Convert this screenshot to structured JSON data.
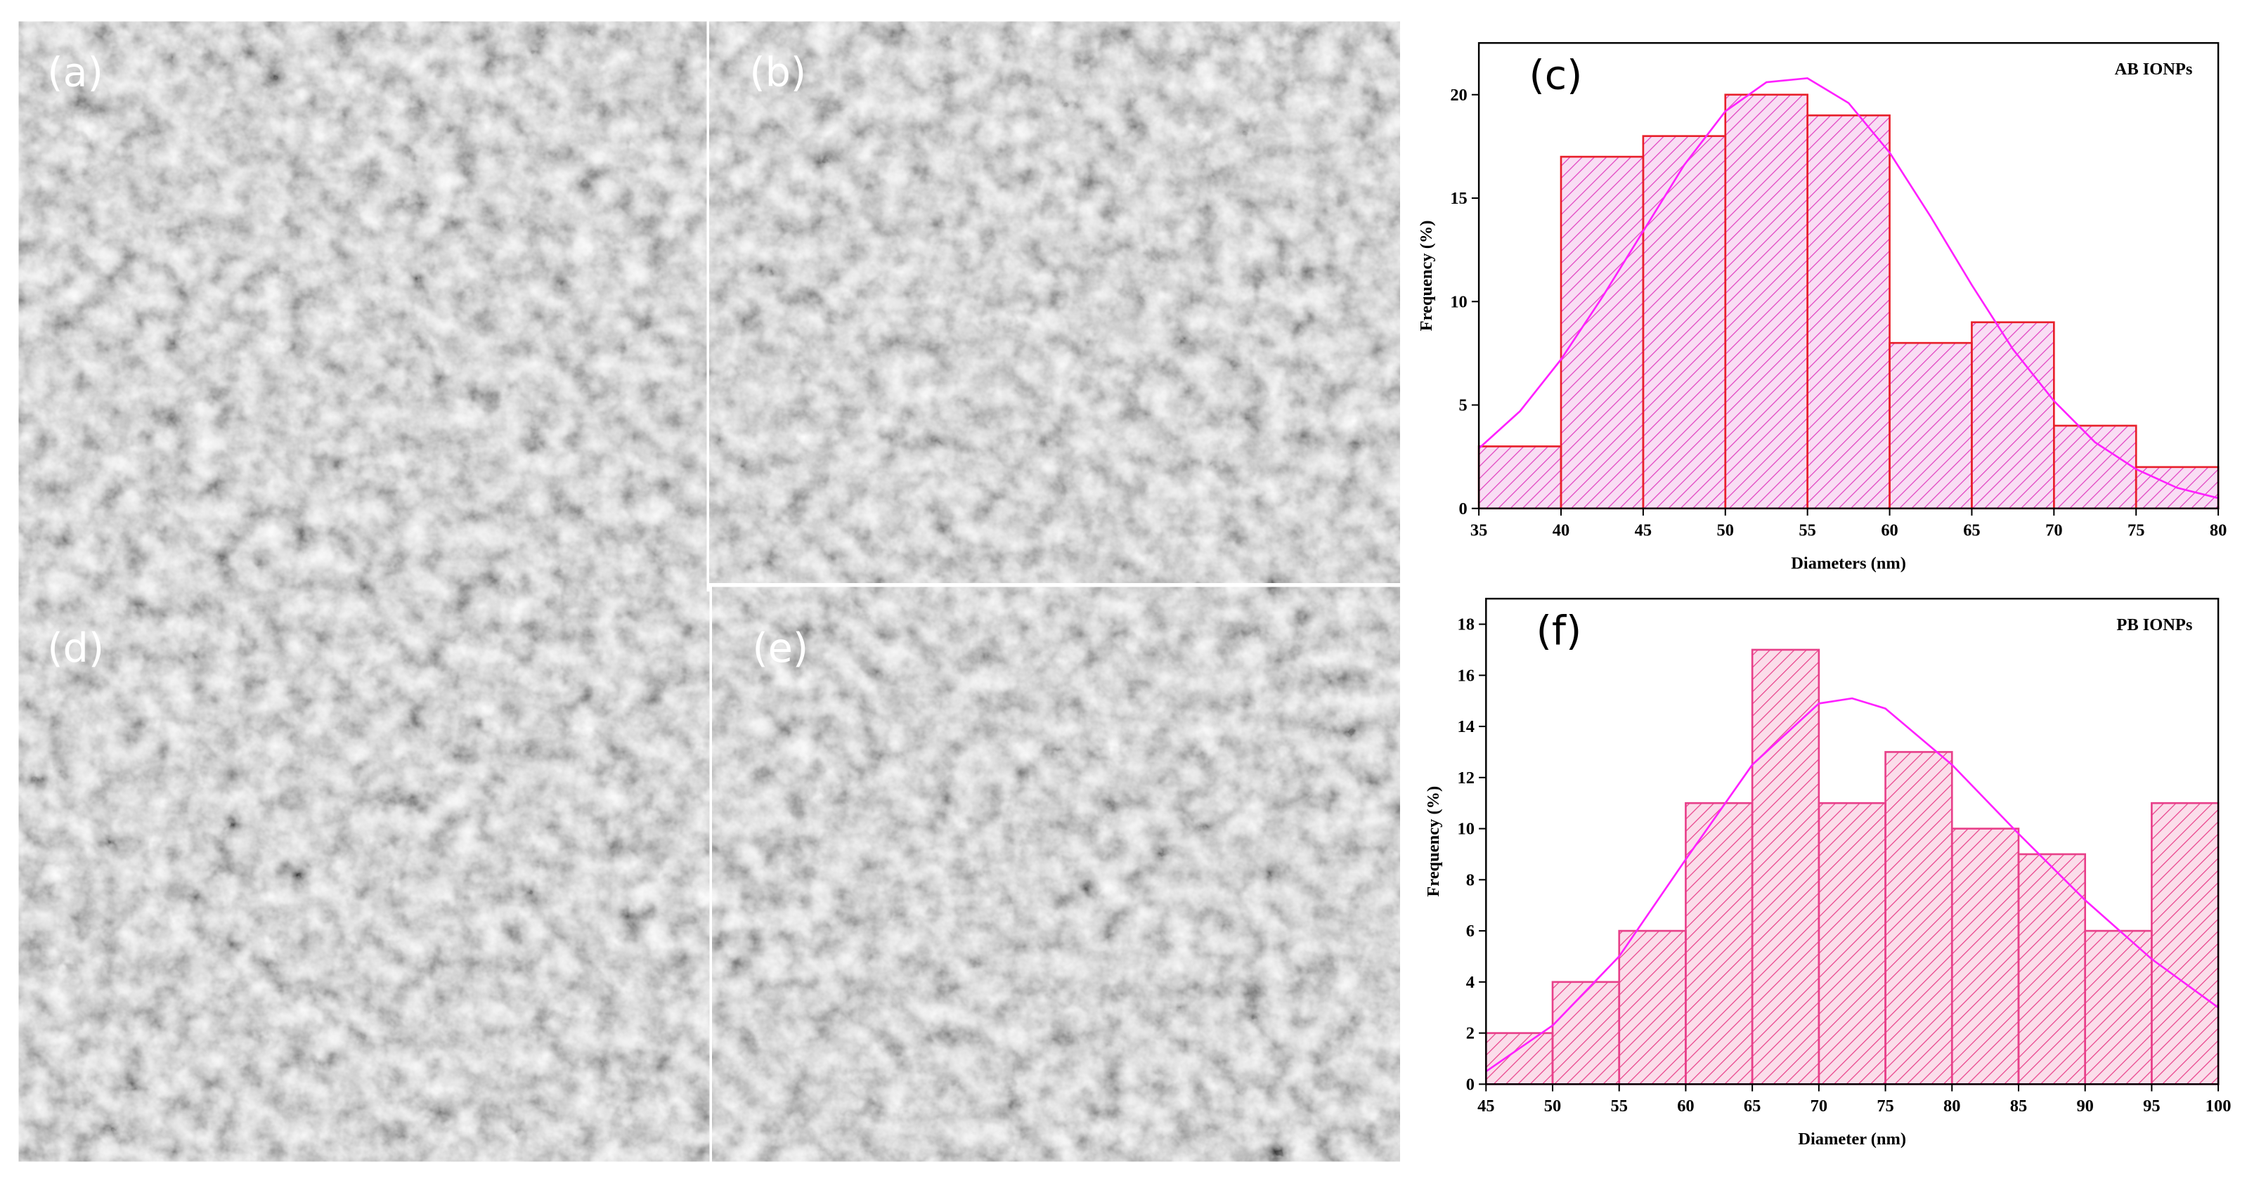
{
  "panels": [
    {
      "label": "(a)"
    },
    {
      "label": "(b)"
    },
    {
      "label": "(d)"
    },
    {
      "label": "(e)"
    }
  ],
  "chart_data": [
    {
      "type": "histogram",
      "panel_label": "(c)",
      "title": "AB IONPs",
      "title_color": "#8b1a3a",
      "xlabel": "Diameters (nm)",
      "ylabel": "Frequency (%)",
      "bins": [
        35,
        40,
        45,
        50,
        55,
        60,
        65,
        70,
        75,
        80
      ],
      "counts": [
        3,
        17,
        18,
        20,
        19,
        8,
        9,
        4,
        2
      ],
      "color": "#e040c0",
      "edge_color": "#e8202a",
      "xlim": [
        35,
        80
      ],
      "ylim": [
        0,
        22.5
      ],
      "xticks": [
        35,
        40,
        45,
        50,
        55,
        60,
        65,
        70,
        75,
        80
      ],
      "yticks": [
        0,
        5,
        10,
        15,
        20
      ],
      "fit": {
        "color": "#ff20ff",
        "x": [
          35,
          37.5,
          40,
          42.5,
          45,
          47.5,
          50,
          52.5,
          55,
          57.5,
          60,
          62.5,
          65,
          67.5,
          70,
          72.5,
          75,
          77.5,
          80
        ],
        "values": [
          2.9,
          4.7,
          7.2,
          10.2,
          13.4,
          16.6,
          19.2,
          20.6,
          20.8,
          19.6,
          17.2,
          14.1,
          10.8,
          7.7,
          5.2,
          3.2,
          1.9,
          1.0,
          0.5
        ]
      }
    },
    {
      "type": "histogram",
      "panel_label": "(f)",
      "title": "PB IONPs",
      "title_color": "#000000",
      "xlabel": "Diameter (nm)",
      "ylabel": "Frequency (%)",
      "bins": [
        45,
        50,
        55,
        60,
        65,
        70,
        75,
        80,
        85,
        90,
        95,
        100
      ],
      "counts": [
        2,
        4,
        6,
        11,
        17,
        11,
        13,
        10,
        9,
        6,
        11
      ],
      "color": "#e8408a",
      "edge_color": "#e8408a",
      "xlim": [
        45,
        100
      ],
      "ylim": [
        0,
        19
      ],
      "xticks": [
        45,
        50,
        55,
        60,
        65,
        70,
        75,
        80,
        85,
        90,
        95,
        100
      ],
      "yticks": [
        0,
        2,
        4,
        6,
        8,
        10,
        12,
        14,
        16,
        18
      ],
      "fit": {
        "color": "#ff20ff",
        "x": [
          45,
          50,
          55,
          60,
          65,
          70,
          72.5,
          75,
          80,
          85,
          90,
          95,
          100
        ],
        "values": [
          0.5,
          2.3,
          5,
          8.8,
          12.5,
          14.9,
          15.1,
          14.7,
          12.5,
          9.8,
          7.2,
          4.9,
          3.0
        ]
      }
    }
  ]
}
